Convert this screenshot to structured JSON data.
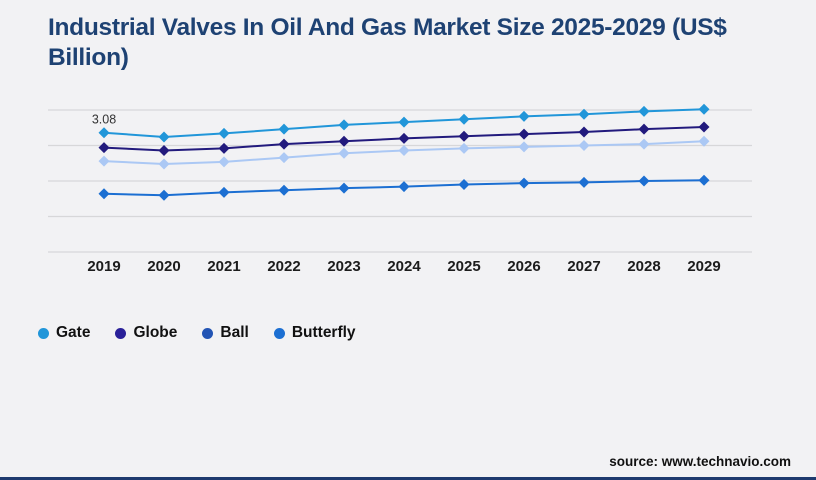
{
  "title": "Industrial Valves In Oil And Gas Market Size 2025-2029 (US$ Billion)",
  "source_text": "source: www.technavio.com",
  "theme": {
    "background": "#f2f2f4",
    "title_color": "#1e4273",
    "grid_color": "#d7d7d9",
    "axis_text_color": "#1c1c1c",
    "annotation_color": "#333333",
    "bottom_bar_color": "#1e3a6e"
  },
  "chart_data": {
    "type": "line",
    "title": "Industrial Valves In Oil And Gas Market Size 2025-2029 (US$ Billion)",
    "xlabel": "",
    "ylabel": "",
    "x": [
      "2019",
      "2020",
      "2021",
      "2022",
      "2023",
      "2024",
      "2025",
      "2026",
      "2027",
      "2028",
      "2029"
    ],
    "series": [
      {
        "name": "Gate",
        "color": "#2196d9",
        "legend_color": "#2196d9",
        "values": [
          3.08,
          3.02,
          3.07,
          3.13,
          3.19,
          3.23,
          3.27,
          3.31,
          3.34,
          3.38,
          3.41
        ]
      },
      {
        "name": "Globe",
        "color": "#221a7d",
        "legend_color": "#2a2099",
        "values": [
          2.87,
          2.83,
          2.86,
          2.92,
          2.96,
          3.0,
          3.03,
          3.06,
          3.09,
          3.13,
          3.16
        ]
      },
      {
        "name": "Ball",
        "color": "#abc8f4",
        "legend_color": "#2254b4",
        "values": [
          2.68,
          2.64,
          2.67,
          2.73,
          2.79,
          2.83,
          2.86,
          2.88,
          2.9,
          2.92,
          2.96
        ]
      },
      {
        "name": "Butterfly",
        "color": "#1c6fd2",
        "legend_color": "#1c6fd2",
        "values": [
          2.22,
          2.2,
          2.24,
          2.27,
          2.3,
          2.32,
          2.35,
          2.37,
          2.38,
          2.4,
          2.41
        ]
      }
    ],
    "annotations": [
      {
        "text": "3.08",
        "series": "Gate",
        "x": "2019"
      }
    ],
    "ylim": [
      1.4,
      3.4
    ],
    "gridline_values": [
      3.4,
      2.9,
      2.4,
      1.9,
      1.4
    ],
    "grid": true,
    "marker": "diamond",
    "legend": [
      "Gate",
      "Globe",
      "Ball",
      "Butterfly"
    ],
    "legend_position": "bottom-left"
  }
}
